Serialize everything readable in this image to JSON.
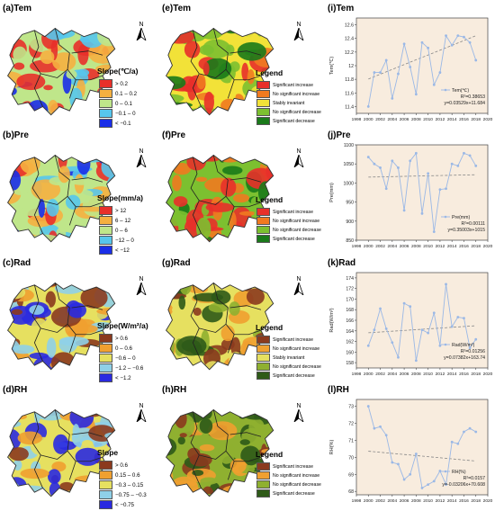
{
  "column1": [
    {
      "label": "(a)Tem",
      "legend_title": "Slope(℃/a)",
      "classes": [
        {
          "text": "> 0.2",
          "color": "#e8302a"
        },
        {
          "text": "0.1 – 0.2",
          "color": "#f5b040"
        },
        {
          "text": "0 – 0.1",
          "color": "#bfe68a"
        },
        {
          "text": "−0.1 – 0",
          "color": "#57c6ec"
        },
        {
          "text": "< −0.1",
          "color": "#1a2ee8"
        }
      ]
    },
    {
      "label": "(b)Pre",
      "legend_title": "Slope(mm/a)",
      "classes": [
        {
          "text": "> 12",
          "color": "#e8302a"
        },
        {
          "text": "6 – 12",
          "color": "#f5b040"
        },
        {
          "text": "0 – 6",
          "color": "#bfe68a"
        },
        {
          "text": "−12 – 0",
          "color": "#57c6ec"
        },
        {
          "text": "< −12",
          "color": "#1a2ee8"
        }
      ]
    },
    {
      "label": "(c)Rad",
      "legend_title": "Slope(W/m²/a)",
      "classes": [
        {
          "text": "> 0.6",
          "color": "#8b3a1e"
        },
        {
          "text": "0 – 0.6",
          "color": "#f0a030"
        },
        {
          "text": "−0.6 – 0",
          "color": "#e6e060"
        },
        {
          "text": "−1.2 – −0.6",
          "color": "#8fd0e8"
        },
        {
          "text": "< −1.2",
          "color": "#2a2ae0"
        }
      ]
    },
    {
      "label": "(d)RH",
      "legend_title": "Slope",
      "classes": [
        {
          "text": "> 0.6",
          "color": "#8b3a1e"
        },
        {
          "text": "0.15 – 0.6",
          "color": "#f0a030"
        },
        {
          "text": "−0.3 – 0.15",
          "color": "#e6e060"
        },
        {
          "text": "−0.75 – −0.3",
          "color": "#8fd0e8"
        },
        {
          "text": "< −0.75",
          "color": "#2a2ae0"
        }
      ]
    }
  ],
  "column2": [
    {
      "label": "(e)Tem",
      "legend_title": "Legend",
      "classes": [
        {
          "text": "Significant increase",
          "color": "#e8302a"
        },
        {
          "text": "No significant increase",
          "color": "#f07a20"
        },
        {
          "text": "Stably invariant",
          "color": "#f2e238"
        },
        {
          "text": "No significant decrease",
          "color": "#7cc030"
        },
        {
          "text": "Significant decrease",
          "color": "#1a7a1a"
        }
      ]
    },
    {
      "label": "(f)Pre",
      "legend_title": "Legend",
      "classes": [
        {
          "text": "Significant increase",
          "color": "#e8302a"
        },
        {
          "text": "No significant increase",
          "color": "#f07a20"
        },
        {
          "text": "No significant decrease",
          "color": "#7cc030"
        },
        {
          "text": "Significant decrease",
          "color": "#1a7a1a"
        }
      ]
    },
    {
      "label": "(g)Rad",
      "legend_title": "Legend",
      "classes": [
        {
          "text": "Significant increase",
          "color": "#8b3a1e"
        },
        {
          "text": "No significant increase",
          "color": "#f0a030"
        },
        {
          "text": "Stably invariant",
          "color": "#e6e060"
        },
        {
          "text": "No significant decrease",
          "color": "#8fb030"
        },
        {
          "text": "Significant decrease",
          "color": "#2e5a18"
        }
      ]
    },
    {
      "label": "(h)RH",
      "legend_title": "Legend",
      "classes": [
        {
          "text": "Significant increase",
          "color": "#8b3a1e"
        },
        {
          "text": "No significant increase",
          "color": "#f0a030"
        },
        {
          "text": "No significant decrease",
          "color": "#8fb030"
        },
        {
          "text": "Significant decrease",
          "color": "#2e5a18"
        }
      ]
    }
  ],
  "north_label": "N",
  "chart_data": [
    {
      "type": "line",
      "label": "(i)Tem",
      "ylabel": "Tem(℃)",
      "xlabel": "",
      "x": [
        2000,
        2001,
        2002,
        2003,
        2004,
        2005,
        2006,
        2007,
        2008,
        2009,
        2010,
        2011,
        2012,
        2013,
        2014,
        2015,
        2016,
        2017,
        2018
      ],
      "series": [
        {
          "name": "Tem(℃)",
          "values": [
            11.4,
            11.9,
            11.9,
            12.08,
            11.52,
            11.88,
            12.32,
            11.98,
            11.58,
            12.34,
            12.26,
            11.72,
            11.9,
            12.44,
            12.3,
            12.44,
            12.42,
            12.34,
            12.08
          ]
        }
      ],
      "xlim": [
        1998,
        2020
      ],
      "xticks": [
        1998,
        2000,
        2002,
        2004,
        2006,
        2008,
        2010,
        2012,
        2014,
        2016,
        2018,
        2020
      ],
      "ylim": [
        11.3,
        12.7
      ],
      "yticks": [
        11.4,
        11.6,
        11.8,
        12.0,
        12.2,
        12.4,
        12.6
      ],
      "trend": {
        "slope": 0.03529,
        "intercept": -58.776
      },
      "legend_name": "Tem(℃)",
      "stat1": "R²=0.38653",
      "stat2": "y=0.03529x+11.684"
    },
    {
      "type": "line",
      "label": "(j)Pre",
      "ylabel": "Pre(mm)",
      "xlabel": "",
      "x": [
        2000,
        2001,
        2002,
        2003,
        2004,
        2005,
        2006,
        2007,
        2008,
        2009,
        2010,
        2011,
        2012,
        2013,
        2014,
        2015,
        2016,
        2017,
        2018
      ],
      "series": [
        {
          "name": "Pre(mm)",
          "values": [
            1068,
            1050,
            1040,
            985,
            1058,
            1040,
            928,
            1058,
            1078,
            920,
            1025,
            872,
            983,
            985,
            1050,
            1045,
            1078,
            1072,
            1045
          ]
        }
      ],
      "xlim": [
        1998,
        2020
      ],
      "xticks": [
        1998,
        2000,
        2002,
        2004,
        2006,
        2008,
        2010,
        2012,
        2014,
        2016,
        2018,
        2020
      ],
      "ylim": [
        850,
        1100
      ],
      "yticks": [
        850,
        900,
        950,
        1000,
        1050,
        1100
      ],
      "trend": {
        "slope": 0.35003,
        "intercept": 315.3
      },
      "legend_name": "Pre(mm)",
      "stat1": "R²=0.00111",
      "stat2": "y=0.35003x+1015"
    },
    {
      "type": "line",
      "label": "(k)Rad",
      "ylabel": "Rad(W/m²)",
      "xlabel": "",
      "x": [
        2000,
        2001,
        2002,
        2003,
        2004,
        2005,
        2006,
        2007,
        2008,
        2009,
        2010,
        2011,
        2012,
        2013,
        2014,
        2015,
        2016,
        2017,
        2018
      ],
      "series": [
        {
          "name": "Rad(W/m²)",
          "values": [
            161.2,
            164.2,
            168.2,
            164.4,
            161.8,
            159.0,
            169.2,
            168.6,
            158.4,
            164.2,
            163.6,
            167.4,
            161.2,
            172.8,
            164.8,
            166.6,
            166.4,
            160.8,
            162.4
          ]
        }
      ],
      "xlim": [
        1998,
        2020
      ],
      "xticks": [
        1998,
        2000,
        2002,
        2004,
        2006,
        2008,
        2010,
        2012,
        2014,
        2016,
        2018,
        2020
      ],
      "ylim": [
        157,
        175
      ],
      "yticks": [
        158,
        160,
        162,
        164,
        166,
        168,
        170,
        172,
        174
      ],
      "trend": {
        "slope": 0.07382,
        "intercept": 16.0
      },
      "legend_name": "Rad(W/m²)",
      "stat1": "R²=0.01256",
      "stat2": "y=0.07382x+163.74"
    },
    {
      "type": "line",
      "label": "(l)RH",
      "ylabel": "RH(%)",
      "xlabel": "",
      "x": [
        2000,
        2001,
        2002,
        2003,
        2004,
        2005,
        2006,
        2007,
        2008,
        2009,
        2010,
        2011,
        2012,
        2013,
        2014,
        2015,
        2016,
        2017,
        2018
      ],
      "series": [
        {
          "name": "RH(%)",
          "values": [
            73.0,
            71.7,
            71.8,
            71.3,
            69.7,
            69.6,
            68.7,
            69.0,
            70.2,
            68.2,
            68.4,
            68.6,
            69.2,
            68.4,
            70.9,
            70.8,
            71.5,
            71.7,
            71.5
          ]
        }
      ],
      "xlim": [
        1998,
        2020
      ],
      "xticks": [
        1998,
        2000,
        2002,
        2004,
        2006,
        2008,
        2010,
        2012,
        2014,
        2016,
        2018,
        2020
      ],
      "ylim": [
        67.8,
        73.4
      ],
      "yticks": [
        68,
        69,
        70,
        71,
        72,
        73
      ],
      "trend": {
        "slope": -0.03206,
        "intercept": 134.48
      },
      "legend_name": "RH(%)",
      "stat1": "R²=0.0157",
      "stat2": "y=-0.03206x+70.608"
    }
  ]
}
